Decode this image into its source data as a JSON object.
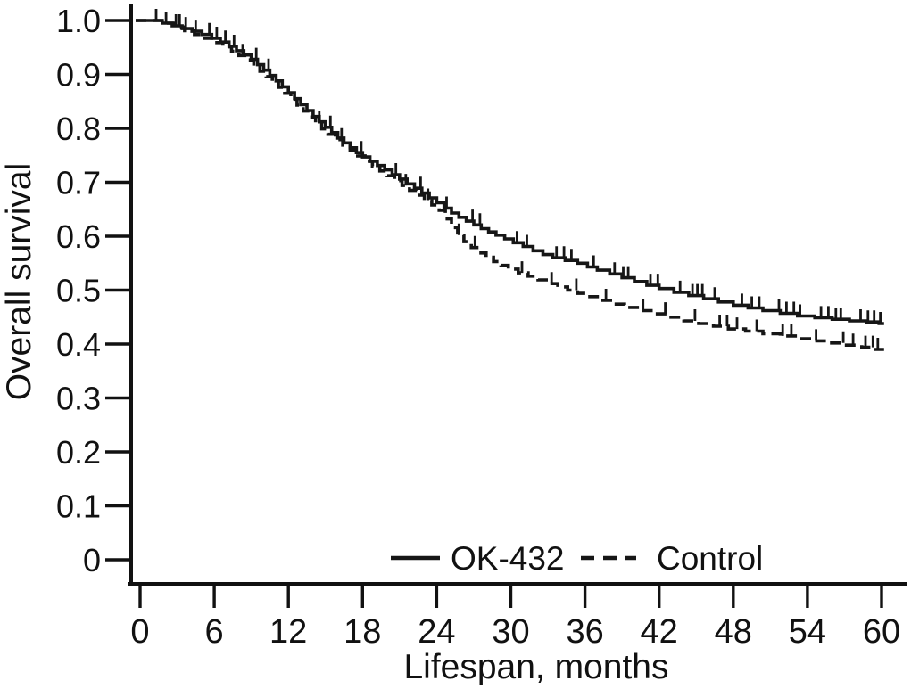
{
  "figure": {
    "y_axis_label": "Overall survival",
    "x_axis_label": "Lifespan, months",
    "legend": [
      {
        "name": "OK-432",
        "line": "solid"
      },
      {
        "name": "Control",
        "line": "dashed"
      }
    ],
    "line_color": "#161616",
    "background_color": "#ffffff"
  },
  "chart_data": {
    "type": "line",
    "subtype": "kaplan-meier-step-curves",
    "title": "",
    "xlabel": "Lifespan, months",
    "ylabel": "Overall survival",
    "xlim": [
      0,
      60
    ],
    "ylim": [
      0,
      1.0
    ],
    "grid": false,
    "legend_position": "bottom-inside",
    "x_ticks": [
      {
        "v": 0,
        "label": "0"
      },
      {
        "v": 6,
        "label": "6"
      },
      {
        "v": 12,
        "label": "12"
      },
      {
        "v": 18,
        "label": "18"
      },
      {
        "v": 24,
        "label": "24"
      },
      {
        "v": 30,
        "label": "30"
      },
      {
        "v": 36,
        "label": "36"
      },
      {
        "v": 42,
        "label": "42"
      },
      {
        "v": 48,
        "label": "48"
      },
      {
        "v": 54,
        "label": "54"
      },
      {
        "v": 60,
        "label": "60"
      }
    ],
    "y_ticks": [
      {
        "v": 1.0,
        "label": "1.0"
      },
      {
        "v": 0.9,
        "label": "0.9"
      },
      {
        "v": 0.8,
        "label": "0.8"
      },
      {
        "v": 0.7,
        "label": "0.7"
      },
      {
        "v": 0.6,
        "label": "0.6"
      },
      {
        "v": 0.5,
        "label": "0.5"
      },
      {
        "v": 0.4,
        "label": "0.4"
      },
      {
        "v": 0.3,
        "label": "0.3"
      },
      {
        "v": 0.2,
        "label": "0.2"
      },
      {
        "v": 0.1,
        "label": "0.1"
      },
      {
        "v": 0,
        "label": "0"
      }
    ],
    "end_month": 60.2,
    "series": [
      {
        "name": "OK-432",
        "line": "solid",
        "color": "#161616",
        "steps": [
          [
            0,
            1.0
          ],
          [
            1.8,
            0.995
          ],
          [
            2.6,
            0.99
          ],
          [
            3.4,
            0.985
          ],
          [
            4.2,
            0.98
          ],
          [
            5.0,
            0.974
          ],
          [
            5.8,
            0.967
          ],
          [
            6.5,
            0.96
          ],
          [
            7.2,
            0.952
          ],
          [
            7.8,
            0.944
          ],
          [
            8.4,
            0.936
          ],
          [
            9.0,
            0.928
          ],
          [
            9.5,
            0.918
          ],
          [
            10.0,
            0.908
          ],
          [
            10.5,
            0.898
          ],
          [
            11.0,
            0.888
          ],
          [
            11.5,
            0.877
          ],
          [
            12.0,
            0.866
          ],
          [
            12.5,
            0.855
          ],
          [
            13.0,
            0.844
          ],
          [
            13.5,
            0.833
          ],
          [
            14.0,
            0.822
          ],
          [
            14.5,
            0.812
          ],
          [
            15.0,
            0.802
          ],
          [
            15.5,
            0.792
          ],
          [
            16.0,
            0.782
          ],
          [
            16.5,
            0.773
          ],
          [
            17.0,
            0.764
          ],
          [
            17.5,
            0.755
          ],
          [
            18.0,
            0.747
          ],
          [
            18.6,
            0.739
          ],
          [
            19.2,
            0.731
          ],
          [
            19.8,
            0.723
          ],
          [
            20.4,
            0.714
          ],
          [
            21.0,
            0.706
          ],
          [
            21.6,
            0.697
          ],
          [
            22.2,
            0.689
          ],
          [
            22.8,
            0.68
          ],
          [
            23.4,
            0.671
          ],
          [
            24.0,
            0.662
          ],
          [
            24.6,
            0.652
          ],
          [
            25.2,
            0.643
          ],
          [
            25.8,
            0.635
          ],
          [
            26.4,
            0.628
          ],
          [
            27.0,
            0.621
          ],
          [
            27.6,
            0.614
          ],
          [
            28.2,
            0.608
          ],
          [
            28.8,
            0.602
          ],
          [
            29.5,
            0.595
          ],
          [
            30.2,
            0.588
          ],
          [
            31.0,
            0.581
          ],
          [
            31.8,
            0.573
          ],
          [
            32.6,
            0.566
          ],
          [
            33.4,
            0.56
          ],
          [
            34.4,
            0.555
          ],
          [
            35.4,
            0.55
          ],
          [
            36.2,
            0.543
          ],
          [
            37.0,
            0.537
          ],
          [
            38.0,
            0.53
          ],
          [
            39.0,
            0.523
          ],
          [
            40.0,
            0.516
          ],
          [
            41.0,
            0.509
          ],
          [
            42.0,
            0.503
          ],
          [
            43.2,
            0.496
          ],
          [
            44.4,
            0.49
          ],
          [
            45.6,
            0.484
          ],
          [
            46.8,
            0.478
          ],
          [
            48.0,
            0.472
          ],
          [
            49.2,
            0.467
          ],
          [
            50.4,
            0.462
          ],
          [
            51.8,
            0.457
          ],
          [
            53.2,
            0.452
          ],
          [
            54.6,
            0.449
          ],
          [
            56.0,
            0.446
          ],
          [
            57.4,
            0.443
          ],
          [
            58.8,
            0.441
          ],
          [
            59.8,
            0.438
          ]
        ],
        "censor_marks": [
          1.3,
          2.1,
          2.9,
          3.2,
          3.7,
          4.5,
          5.6,
          6.2,
          6.9,
          7.6,
          9.4,
          10.4,
          15.4,
          17.9,
          20.7,
          22.7,
          24.8,
          26.9,
          27.5,
          30.5,
          31.3,
          33.7,
          34.3,
          34.9,
          36.7,
          38.4,
          39.1,
          39.5,
          41.3,
          41.9,
          43.7,
          44.7,
          45.1,
          45.5,
          46.5,
          48.7,
          49.5,
          50.1,
          51.7,
          52.3,
          52.9,
          53.4,
          55.1,
          55.7,
          56.3,
          56.7,
          58.3,
          58.9,
          59.4,
          59.9
        ]
      },
      {
        "name": "Control",
        "line": "dashed",
        "color": "#161616",
        "steps": [
          [
            0,
            1.0
          ],
          [
            1.9,
            0.995
          ],
          [
            2.8,
            0.988
          ],
          [
            3.6,
            0.981
          ],
          [
            4.4,
            0.974
          ],
          [
            5.2,
            0.967
          ],
          [
            6.0,
            0.959
          ],
          [
            6.7,
            0.951
          ],
          [
            7.4,
            0.943
          ],
          [
            8.0,
            0.935
          ],
          [
            8.6,
            0.927
          ],
          [
            9.2,
            0.916
          ],
          [
            9.7,
            0.906
          ],
          [
            10.2,
            0.896
          ],
          [
            10.7,
            0.886
          ],
          [
            11.2,
            0.876
          ],
          [
            11.7,
            0.865
          ],
          [
            12.2,
            0.854
          ],
          [
            12.7,
            0.843
          ],
          [
            13.2,
            0.832
          ],
          [
            13.7,
            0.821
          ],
          [
            14.2,
            0.81
          ],
          [
            14.7,
            0.799
          ],
          [
            15.2,
            0.789
          ],
          [
            15.8,
            0.779
          ],
          [
            16.4,
            0.769
          ],
          [
            17.0,
            0.759
          ],
          [
            17.6,
            0.749
          ],
          [
            18.2,
            0.739
          ],
          [
            18.8,
            0.73
          ],
          [
            19.4,
            0.721
          ],
          [
            20.0,
            0.712
          ],
          [
            20.6,
            0.703
          ],
          [
            21.2,
            0.694
          ],
          [
            21.8,
            0.685
          ],
          [
            22.4,
            0.676
          ],
          [
            23.0,
            0.667
          ],
          [
            23.6,
            0.658
          ],
          [
            24.2,
            0.648
          ],
          [
            24.7,
            0.632
          ],
          [
            25.2,
            0.616
          ],
          [
            25.7,
            0.602
          ],
          [
            26.2,
            0.59
          ],
          [
            26.8,
            0.579
          ],
          [
            27.4,
            0.569
          ],
          [
            28.0,
            0.561
          ],
          [
            28.6,
            0.553
          ],
          [
            29.2,
            0.546
          ],
          [
            29.8,
            0.539
          ],
          [
            30.6,
            0.532
          ],
          [
            31.4,
            0.526
          ],
          [
            32.2,
            0.519
          ],
          [
            33.0,
            0.512
          ],
          [
            33.8,
            0.506
          ],
          [
            34.6,
            0.5
          ],
          [
            35.4,
            0.494
          ],
          [
            36.2,
            0.488
          ],
          [
            37.2,
            0.481
          ],
          [
            38.2,
            0.474
          ],
          [
            39.2,
            0.468
          ],
          [
            40.4,
            0.462
          ],
          [
            41.6,
            0.456
          ],
          [
            42.8,
            0.45
          ],
          [
            44.0,
            0.443
          ],
          [
            45.2,
            0.438
          ],
          [
            46.4,
            0.433
          ],
          [
            47.6,
            0.428
          ],
          [
            49.0,
            0.424
          ],
          [
            50.4,
            0.419
          ],
          [
            51.8,
            0.415
          ],
          [
            53.2,
            0.41
          ],
          [
            54.4,
            0.406
          ],
          [
            55.6,
            0.402
          ],
          [
            57.0,
            0.398
          ],
          [
            58.4,
            0.394
          ],
          [
            59.4,
            0.39
          ]
        ],
        "censor_marks": [
          8.3,
          14.5,
          16.3,
          21.5,
          23.3,
          25.8,
          27.1,
          30.9,
          33.3,
          35.3,
          37.7,
          40.7,
          42.5,
          44.9,
          46.9,
          47.5,
          48.3,
          49.9,
          52.0,
          52.7,
          54.7,
          56.9,
          57.7,
          58.7,
          59.3,
          59.7
        ]
      }
    ]
  }
}
